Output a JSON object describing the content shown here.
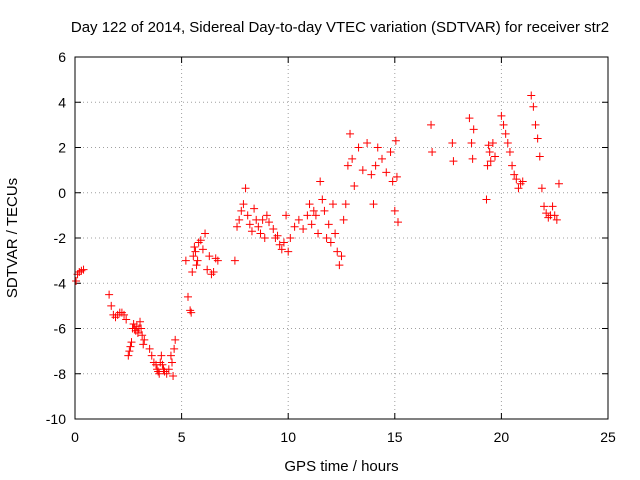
{
  "chart_data": {
    "type": "scatter",
    "title": "Day 122 of 2014, Sidereal Day-to-day VTEC variation (SDTVAR) for receiver str2",
    "xlabel": "GPS time / hours",
    "ylabel": "SDTVAR / TECUs",
    "xlim": [
      0,
      25
    ],
    "ylim": [
      -10,
      6
    ],
    "xticks": [
      0,
      5,
      10,
      15,
      20,
      25
    ],
    "yticks": [
      -10,
      -8,
      -6,
      -4,
      -2,
      0,
      2,
      4,
      6
    ],
    "grid": true,
    "marker": "+",
    "color": "#ff0000",
    "series": [
      {
        "name": "SDTVAR",
        "x": [
          0.05,
          0.12,
          0.2,
          0.3,
          0.4,
          1.6,
          1.7,
          1.8,
          1.9,
          2.0,
          2.1,
          2.2,
          2.3,
          2.4,
          2.5,
          2.55,
          2.6,
          2.65,
          2.7,
          2.75,
          2.8,
          2.85,
          2.9,
          2.95,
          3.0,
          3.05,
          3.1,
          3.15,
          3.2,
          3.25,
          3.5,
          3.6,
          3.7,
          3.8,
          3.85,
          3.9,
          3.95,
          4.0,
          4.05,
          4.1,
          4.15,
          4.2,
          4.3,
          4.4,
          4.5,
          4.55,
          4.6,
          4.65,
          4.7,
          5.2,
          5.3,
          5.4,
          5.45,
          5.5,
          5.55,
          5.6,
          5.65,
          5.7,
          5.75,
          5.8,
          5.9,
          6.0,
          6.1,
          6.2,
          6.3,
          6.4,
          6.5,
          6.6,
          6.7,
          7.5,
          7.6,
          7.7,
          7.8,
          7.9,
          8.0,
          8.1,
          8.2,
          8.3,
          8.4,
          8.5,
          8.6,
          8.7,
          8.8,
          8.9,
          9.0,
          9.1,
          9.3,
          9.4,
          9.5,
          9.6,
          9.7,
          9.8,
          9.9,
          10.0,
          10.1,
          10.3,
          10.5,
          10.7,
          10.9,
          11.0,
          11.1,
          11.2,
          11.3,
          11.4,
          11.5,
          11.6,
          11.7,
          11.8,
          11.9,
          12.0,
          12.1,
          12.2,
          12.3,
          12.4,
          12.5,
          12.6,
          12.7,
          12.8,
          12.9,
          13.0,
          13.1,
          13.3,
          13.5,
          13.7,
          13.9,
          14.0,
          14.1,
          14.2,
          14.4,
          14.6,
          14.8,
          14.9,
          15.0,
          15.05,
          15.1,
          15.15,
          16.7,
          16.75,
          17.7,
          17.75,
          18.5,
          18.6,
          18.65,
          18.7,
          19.3,
          19.35,
          19.4,
          19.45,
          19.5,
          19.6,
          19.7,
          20.0,
          20.1,
          20.2,
          20.3,
          20.4,
          20.5,
          20.6,
          20.7,
          20.8,
          20.9,
          21.0,
          21.4,
          21.5,
          21.6,
          21.7,
          21.8,
          21.9,
          22.0,
          22.1,
          22.2,
          22.3,
          22.4,
          22.5,
          22.6,
          22.7
        ],
        "y": [
          -3.9,
          -3.6,
          -3.5,
          -3.45,
          -3.4,
          -4.5,
          -5.0,
          -5.4,
          -5.5,
          -5.4,
          -5.3,
          -5.3,
          -5.4,
          -5.6,
          -7.2,
          -7.0,
          -6.8,
          -6.6,
          -6.0,
          -5.8,
          -6.0,
          -6.1,
          -5.9,
          -6.2,
          -6.0,
          -5.7,
          -6.0,
          -6.3,
          -6.7,
          -6.5,
          -6.9,
          -7.2,
          -7.5,
          -7.6,
          -7.8,
          -7.9,
          -8.0,
          -7.5,
          -7.2,
          -7.6,
          -7.8,
          -7.9,
          -8.0,
          -7.8,
          -7.2,
          -7.5,
          -8.1,
          -6.9,
          -6.5,
          -3.0,
          -4.6,
          -5.2,
          -5.3,
          -3.5,
          -2.8,
          -2.4,
          -2.6,
          -3.2,
          -3.0,
          -2.2,
          -2.1,
          -2.5,
          -1.8,
          -3.4,
          -2.8,
          -3.6,
          -3.5,
          -2.9,
          -3.0,
          -3.0,
          -1.5,
          -1.2,
          -0.8,
          -0.5,
          0.2,
          -1.0,
          -1.4,
          -1.7,
          -0.7,
          -1.2,
          -1.5,
          -1.8,
          -1.2,
          -2.0,
          -1.0,
          -1.3,
          -1.6,
          -2.0,
          -1.9,
          -2.3,
          -2.5,
          -2.2,
          -1.0,
          -2.6,
          -2.0,
          -1.5,
          -1.2,
          -1.6,
          -1.0,
          -0.5,
          -1.4,
          -0.8,
          -1.0,
          -1.8,
          0.5,
          -0.3,
          -0.8,
          -2.0,
          -1.4,
          -2.2,
          -0.5,
          -1.8,
          -2.6,
          -3.2,
          -2.8,
          -1.2,
          -0.5,
          1.2,
          2.6,
          1.5,
          0.3,
          2.0,
          1.0,
          2.2,
          0.8,
          -0.5,
          1.2,
          2.0,
          1.5,
          0.9,
          1.8,
          0.5,
          -0.8,
          2.3,
          0.7,
          -1.3,
          3.0,
          1.8,
          2.2,
          1.4,
          3.3,
          2.2,
          1.5,
          2.8,
          -0.3,
          1.2,
          2.1,
          1.8,
          1.4,
          2.2,
          1.6,
          3.4,
          3.0,
          2.6,
          2.2,
          1.8,
          1.2,
          0.8,
          0.6,
          0.2,
          0.4,
          0.5,
          4.3,
          3.8,
          3.0,
          2.4,
          1.6,
          0.2,
          -0.6,
          -0.9,
          -1.1,
          -1.0,
          -0.6,
          -1.0,
          -1.2,
          0.4
        ]
      }
    ]
  }
}
